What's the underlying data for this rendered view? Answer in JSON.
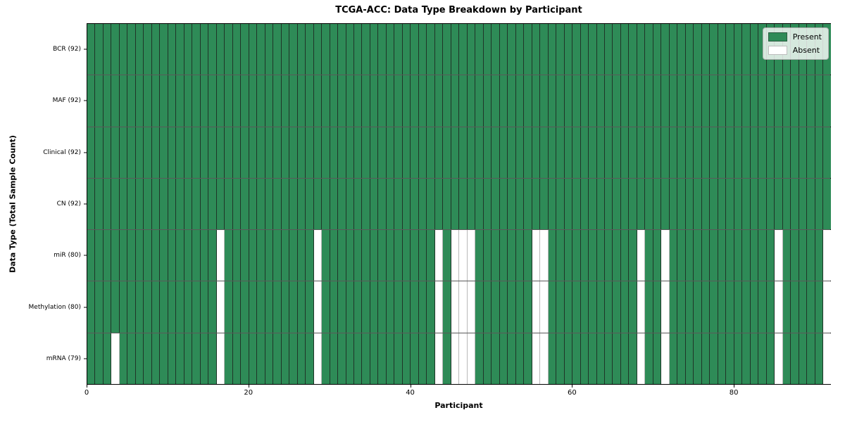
{
  "title": "TCGA-ACC: Data Type Breakdown by Participant",
  "axes": {
    "xlabel": "Participant",
    "ylabel": "Data Type (Total Sample Count)"
  },
  "legend": {
    "present_label": "Present",
    "absent_label": "Absent"
  },
  "chart_data": {
    "type": "heatmap",
    "title": "TCGA-ACC: Data Type Breakdown by Participant",
    "xlabel": "Participant",
    "ylabel": "Data Type (Total Sample Count)",
    "n_participants": 92,
    "xlim": [
      0,
      92
    ],
    "x_ticks": [
      0,
      20,
      40,
      60,
      80
    ],
    "grid": "cell-edges",
    "legend_position": "upper right",
    "colors": {
      "present": "#2e8b57",
      "absent": "#ffffff"
    },
    "legend_entries": [
      {
        "label": "Present",
        "color": "#2e8b57"
      },
      {
        "label": "Absent",
        "color": "#ffffff"
      }
    ],
    "rows": [
      {
        "name": "bcr",
        "label": "BCR (92)",
        "total_samples": 92,
        "absent_participants": []
      },
      {
        "name": "maf",
        "label": "MAF (92)",
        "total_samples": 92,
        "absent_participants": []
      },
      {
        "name": "clinical",
        "label": "Clinical (92)",
        "total_samples": 92,
        "absent_participants": []
      },
      {
        "name": "cn",
        "label": "CN (92)",
        "total_samples": 92,
        "absent_participants": []
      },
      {
        "name": "mir",
        "label": "miR (80)",
        "total_samples": 80,
        "absent_participants": [
          16,
          28,
          43,
          45,
          46,
          47,
          55,
          56,
          68,
          71,
          85,
          91
        ]
      },
      {
        "name": "methylation",
        "label": "Methylation (80)",
        "total_samples": 80,
        "absent_participants": [
          16,
          28,
          43,
          45,
          46,
          47,
          55,
          56,
          68,
          71,
          85,
          91
        ]
      },
      {
        "name": "mrna",
        "label": "mRNA (79)",
        "total_samples": 79,
        "absent_participants": [
          3,
          16,
          28,
          43,
          45,
          46,
          47,
          55,
          56,
          68,
          71,
          85,
          91
        ]
      }
    ]
  }
}
